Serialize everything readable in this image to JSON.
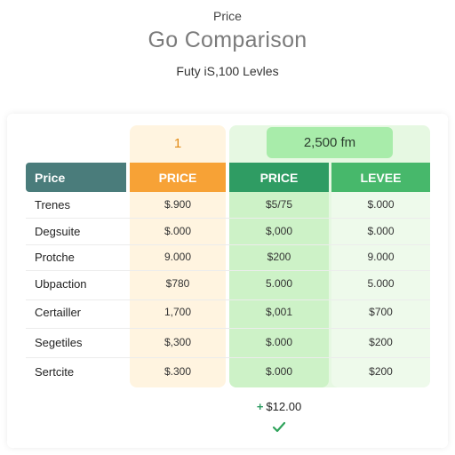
{
  "header": {
    "eyebrow": "Price",
    "title": "Go Comparison",
    "subtitle": "Futy iS,100 Levles"
  },
  "table": {
    "top_badges": {
      "orange": "1",
      "green": "2,500 fm"
    },
    "columns": [
      "Price",
      "PRICE",
      "PRICE",
      "LEVEE"
    ],
    "rows": [
      {
        "label": "Trenes",
        "values": [
          "$.900",
          "$5/75",
          "$.000"
        ]
      },
      {
        "label": "Degsuite",
        "values": [
          "$.000",
          "$,000",
          "$.000"
        ]
      },
      {
        "label": "Protche",
        "values": [
          "9.000",
          "$200",
          "9.000"
        ]
      },
      {
        "label": "Ubpaction",
        "values": [
          "$780",
          "5.000",
          "5.000"
        ]
      },
      {
        "label": "Certailler",
        "values": [
          "1,700",
          "$,001",
          "$700"
        ]
      },
      {
        "label": "Segetiles",
        "values": [
          "$,300",
          "$.000",
          "$200"
        ]
      },
      {
        "label": "Sertcite",
        "values": [
          "$.300",
          "$.000",
          "$200"
        ]
      }
    ]
  },
  "footer": {
    "total_plus": "+",
    "total_value": "$12.00",
    "check_icon": "check-icon"
  },
  "colors": {
    "orange": "#f7a236",
    "green_dark": "#2f9c63",
    "green_light": "#47b86b",
    "teal_header": "#4a7c7b"
  }
}
